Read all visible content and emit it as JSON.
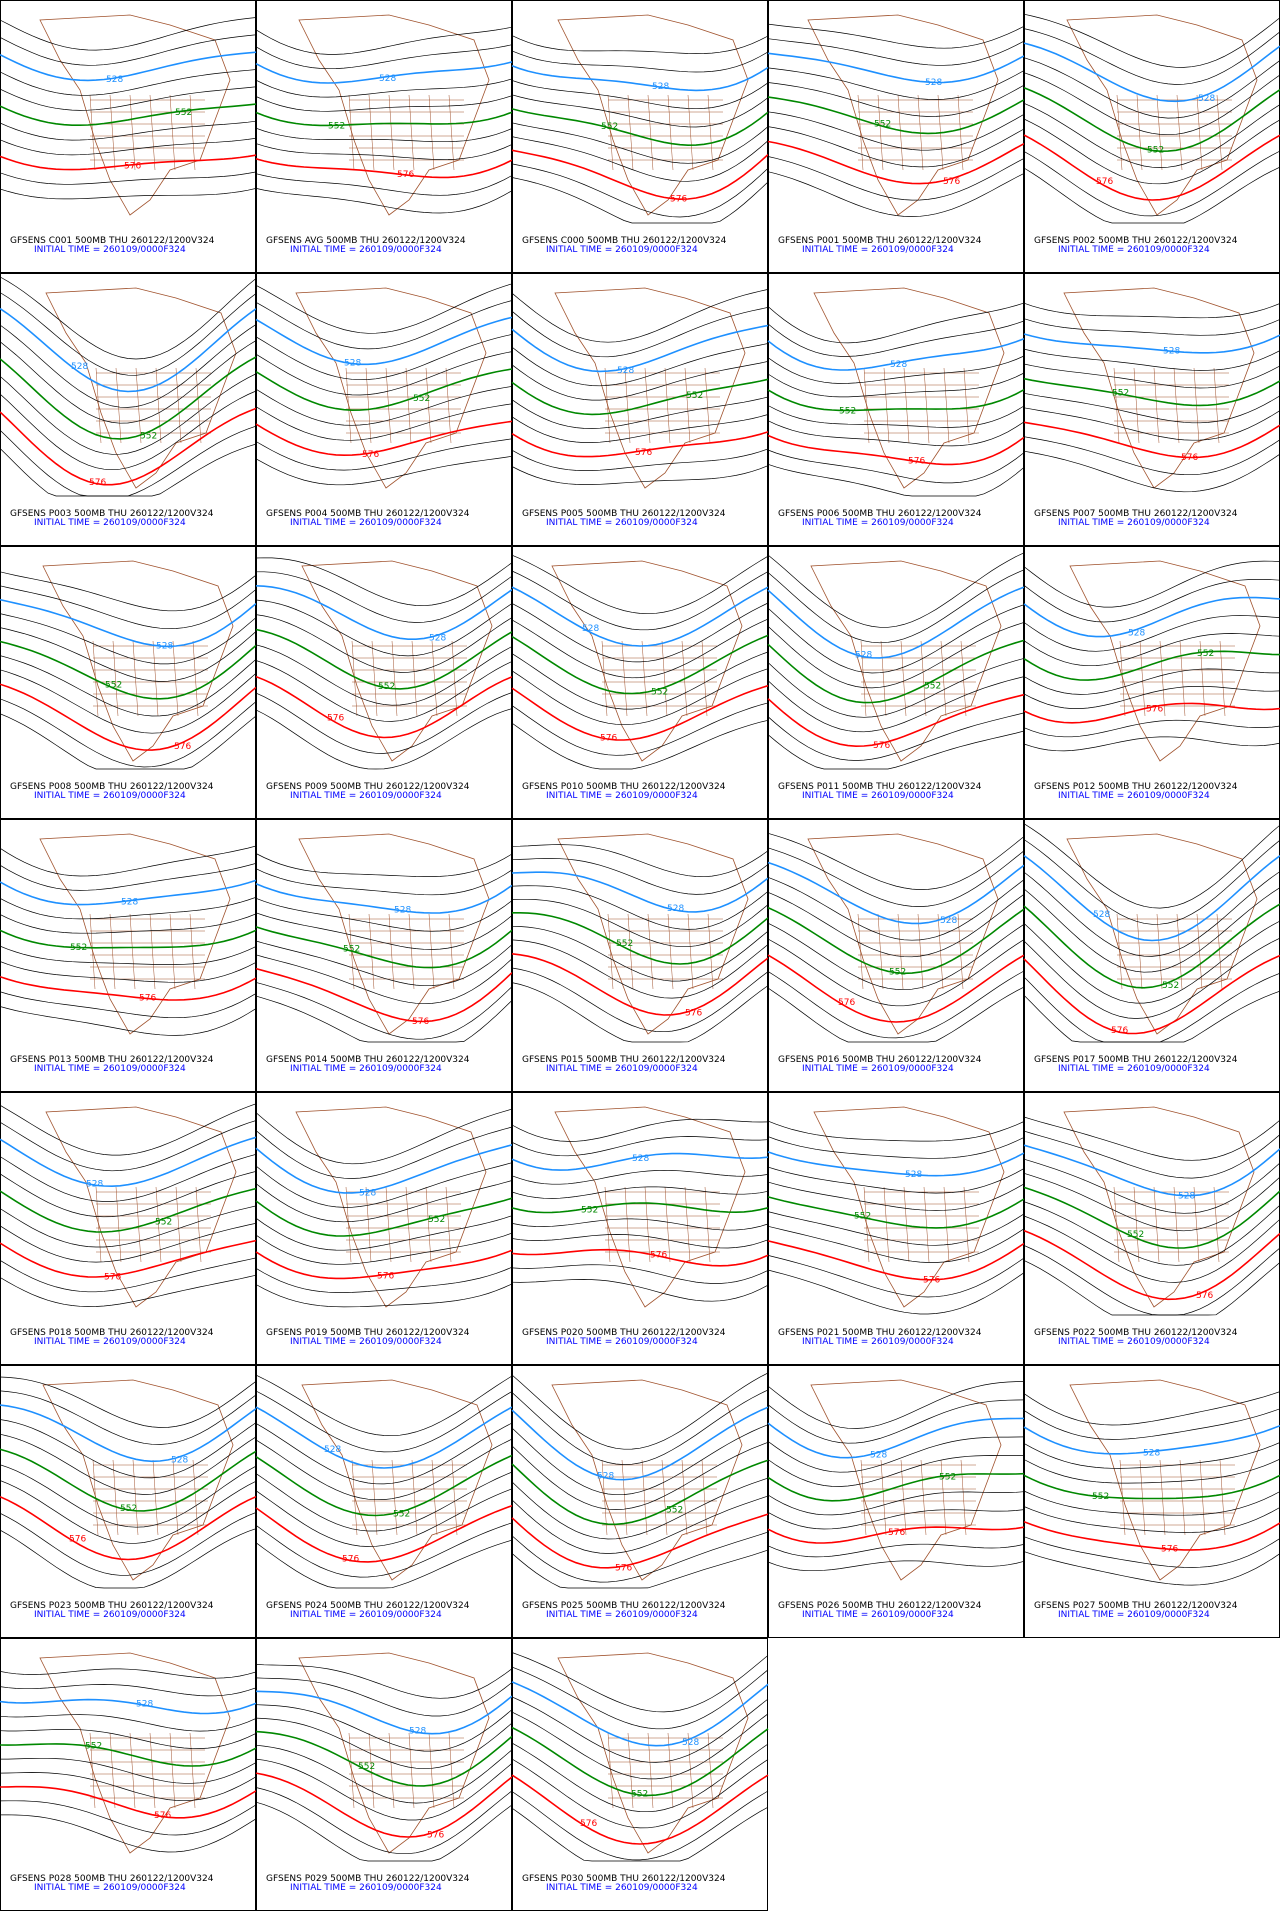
{
  "contour_labels": [
    "528",
    "552",
    "576"
  ],
  "panels": [
    {
      "title": "GFSENS C001 500MB THU 260122/1200V324",
      "init": "INITIAL TIME = 260109/0000F324"
    },
    {
      "title": "GFSENS AVG 500MB THU 260122/1200V324",
      "init": "INITIAL TIME = 260109/0000F324"
    },
    {
      "title": "GFSENS C000 500MB THU 260122/1200V324",
      "init": "INITIAL TIME = 260109/0000F324"
    },
    {
      "title": "GFSENS P001 500MB THU 260122/1200V324",
      "init": "INITIAL TIME = 260109/0000F324"
    },
    {
      "title": "GFSENS P002 500MB THU 260122/1200V324",
      "init": "INITIAL TIME = 260109/0000F324"
    },
    {
      "title": "GFSENS P003 500MB THU 260122/1200V324",
      "init": "INITIAL TIME = 260109/0000F324"
    },
    {
      "title": "GFSENS P004 500MB THU 260122/1200V324",
      "init": "INITIAL TIME = 260109/0000F324"
    },
    {
      "title": "GFSENS P005 500MB THU 260122/1200V324",
      "init": "INITIAL TIME = 260109/0000F324"
    },
    {
      "title": "GFSENS P006 500MB THU 260122/1200V324",
      "init": "INITIAL TIME = 260109/0000F324"
    },
    {
      "title": "GFSENS P007 500MB THU 260122/1200V324",
      "init": "INITIAL TIME = 260109/0000F324"
    },
    {
      "title": "GFSENS P008 500MB THU 260122/1200V324",
      "init": "INITIAL TIME = 260109/0000F324"
    },
    {
      "title": "GFSENS P009 500MB THU 260122/1200V324",
      "init": "INITIAL TIME = 260109/0000F324"
    },
    {
      "title": "GFSENS P010 500MB THU 260122/1200V324",
      "init": "INITIAL TIME = 260109/0000F324"
    },
    {
      "title": "GFSENS P011 500MB THU 260122/1200V324",
      "init": "INITIAL TIME = 260109/0000F324"
    },
    {
      "title": "GFSENS P012 500MB THU 260122/1200V324",
      "init": "INITIAL TIME = 260109/0000F324"
    },
    {
      "title": "GFSENS P013 500MB THU 260122/1200V324",
      "init": "INITIAL TIME = 260109/0000F324"
    },
    {
      "title": "GFSENS P014 500MB THU 260122/1200V324",
      "init": "INITIAL TIME = 260109/0000F324"
    },
    {
      "title": "GFSENS P015 500MB THU 260122/1200V324",
      "init": "INITIAL TIME = 260109/0000F324"
    },
    {
      "title": "GFSENS P016 500MB THU 260122/1200V324",
      "init": "INITIAL TIME = 260109/0000F324"
    },
    {
      "title": "GFSENS P017 500MB THU 260122/1200V324",
      "init": "INITIAL TIME = 260109/0000F324"
    },
    {
      "title": "GFSENS P018 500MB THU 260122/1200V324",
      "init": "INITIAL TIME = 260109/0000F324"
    },
    {
      "title": "GFSENS P019 500MB THU 260122/1200V324",
      "init": "INITIAL TIME = 260109/0000F324"
    },
    {
      "title": "GFSENS P020 500MB THU 260122/1200V324",
      "init": "INITIAL TIME = 260109/0000F324"
    },
    {
      "title": "GFSENS P021 500MB THU 260122/1200V324",
      "init": "INITIAL TIME = 260109/0000F324"
    },
    {
      "title": "GFSENS P022 500MB THU 260122/1200V324",
      "init": "INITIAL TIME = 260109/0000F324"
    },
    {
      "title": "GFSENS P023 500MB THU 260122/1200V324",
      "init": "INITIAL TIME = 260109/0000F324"
    },
    {
      "title": "GFSENS P024 500MB THU 260122/1200V324",
      "init": "INITIAL TIME = 260109/0000F324"
    },
    {
      "title": "GFSENS P025 500MB THU 260122/1200V324",
      "init": "INITIAL TIME = 260109/0000F324"
    },
    {
      "title": "GFSENS P026 500MB THU 260122/1200V324",
      "init": "INITIAL TIME = 260109/0000F324"
    },
    {
      "title": "GFSENS P027 500MB THU 260122/1200V324",
      "init": "INITIAL TIME = 260109/0000F324"
    },
    {
      "title": "GFSENS P028 500MB THU 260122/1200V324",
      "init": "INITIAL TIME = 260109/0000F324"
    },
    {
      "title": "GFSENS P029 500MB THU 260122/1200V324",
      "init": "INITIAL TIME = 260109/0000F324"
    },
    {
      "title": "GFSENS P030 500MB THU 260122/1200V324",
      "init": "INITIAL TIME = 260109/0000F324"
    }
  ]
}
